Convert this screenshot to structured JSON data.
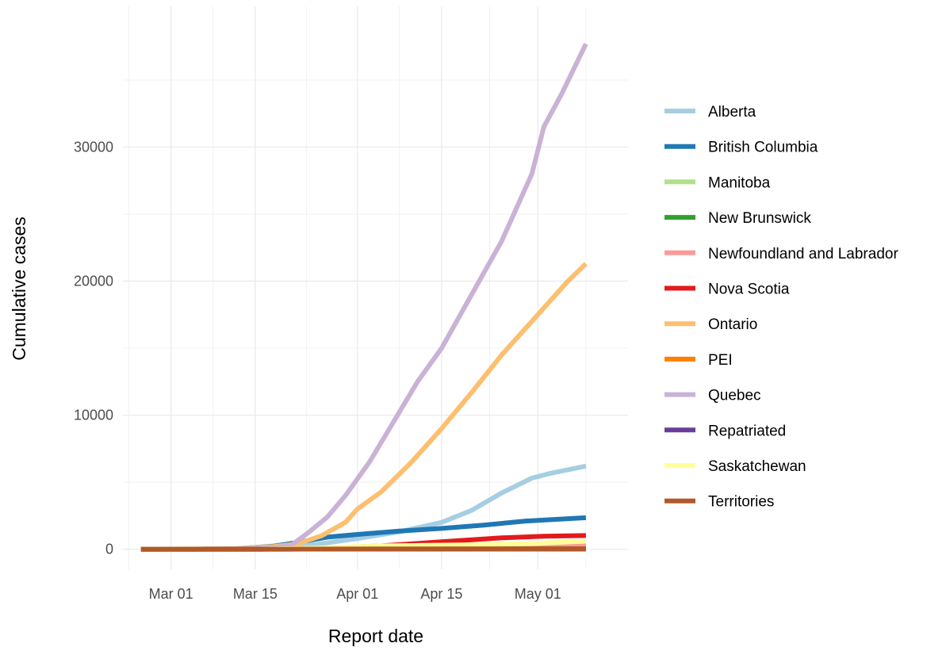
{
  "chart_data": {
    "type": "line",
    "title": "",
    "xlabel": "Report date",
    "ylabel": "Cumulative cases",
    "x_ticks": [
      "Mar 01",
      "Mar 15",
      "Apr 01",
      "Apr 15",
      "May 01"
    ],
    "x_tick_dates": [
      "2020-03-01",
      "2020-03-15",
      "2020-04-01",
      "2020-04-15",
      "2020-05-01"
    ],
    "y_ticks": [
      "0",
      "10000",
      "20000",
      "30000"
    ],
    "xlim": [
      "2020-02-22",
      "2020-05-16"
    ],
    "ylim": [
      -1500,
      40500
    ],
    "grid": true,
    "legend_position": "right",
    "series": [
      {
        "name": "Alberta",
        "color": "#a6cee3",
        "points": [
          [
            "2020-02-25",
            0
          ],
          [
            "2020-03-05",
            0
          ],
          [
            "2020-03-12",
            20
          ],
          [
            "2020-03-20",
            150
          ],
          [
            "2020-03-25",
            350
          ],
          [
            "2020-04-01",
            800
          ],
          [
            "2020-04-08",
            1300
          ],
          [
            "2020-04-15",
            2000
          ],
          [
            "2020-04-20",
            2900
          ],
          [
            "2020-04-25",
            4200
          ],
          [
            "2020-04-30",
            5300
          ],
          [
            "2020-05-03",
            5650
          ],
          [
            "2020-05-09",
            6200
          ]
        ]
      },
      {
        "name": "British Columbia",
        "color": "#1f78b4",
        "points": [
          [
            "2020-02-25",
            0
          ],
          [
            "2020-03-05",
            10
          ],
          [
            "2020-03-12",
            40
          ],
          [
            "2020-03-18",
            230
          ],
          [
            "2020-03-22",
            500
          ],
          [
            "2020-03-27",
            900
          ],
          [
            "2020-04-01",
            1100
          ],
          [
            "2020-04-08",
            1350
          ],
          [
            "2020-04-15",
            1550
          ],
          [
            "2020-04-22",
            1800
          ],
          [
            "2020-04-29",
            2100
          ],
          [
            "2020-05-09",
            2350
          ]
        ]
      },
      {
        "name": "Manitoba",
        "color": "#b2df8a",
        "points": [
          [
            "2020-02-25",
            0
          ],
          [
            "2020-03-15",
            5
          ],
          [
            "2020-03-25",
            40
          ],
          [
            "2020-04-05",
            200
          ],
          [
            "2020-04-20",
            260
          ],
          [
            "2020-05-09",
            290
          ]
        ]
      },
      {
        "name": "New Brunswick",
        "color": "#33a02c",
        "points": [
          [
            "2020-02-25",
            0
          ],
          [
            "2020-03-15",
            5
          ],
          [
            "2020-03-25",
            30
          ],
          [
            "2020-04-05",
            100
          ],
          [
            "2020-04-20",
            118
          ],
          [
            "2020-05-09",
            120
          ]
        ]
      },
      {
        "name": "Newfoundland and Labrador",
        "color": "#fb9a99",
        "points": [
          [
            "2020-02-25",
            0
          ],
          [
            "2020-03-15",
            2
          ],
          [
            "2020-03-25",
            60
          ],
          [
            "2020-04-05",
            200
          ],
          [
            "2020-04-20",
            255
          ],
          [
            "2020-05-09",
            260
          ]
        ]
      },
      {
        "name": "Nova Scotia",
        "color": "#e31a1c",
        "points": [
          [
            "2020-02-25",
            0
          ],
          [
            "2020-03-15",
            2
          ],
          [
            "2020-03-25",
            50
          ],
          [
            "2020-04-05",
            250
          ],
          [
            "2020-04-15",
            550
          ],
          [
            "2020-04-25",
            850
          ],
          [
            "2020-05-02",
            970
          ],
          [
            "2020-05-09",
            1020
          ]
        ]
      },
      {
        "name": "Ontario",
        "color": "#fdbf6f",
        "points": [
          [
            "2020-02-25",
            0
          ],
          [
            "2020-03-05",
            20
          ],
          [
            "2020-03-12",
            50
          ],
          [
            "2020-03-18",
            200
          ],
          [
            "2020-03-22",
            400
          ],
          [
            "2020-03-26",
            1000
          ],
          [
            "2020-03-30",
            2000
          ],
          [
            "2020-04-01",
            3000
          ],
          [
            "2020-04-05",
            4300
          ],
          [
            "2020-04-10",
            6500
          ],
          [
            "2020-04-15",
            9000
          ],
          [
            "2020-04-20",
            11700
          ],
          [
            "2020-04-25",
            14500
          ],
          [
            "2020-04-30",
            17000
          ],
          [
            "2020-05-03",
            18500
          ],
          [
            "2020-05-06",
            20000
          ],
          [
            "2020-05-09",
            21300
          ]
        ]
      },
      {
        "name": "PEI",
        "color": "#ff7f00",
        "points": [
          [
            "2020-02-25",
            0
          ],
          [
            "2020-03-15",
            1
          ],
          [
            "2020-04-01",
            21
          ],
          [
            "2020-05-09",
            27
          ]
        ]
      },
      {
        "name": "Quebec",
        "color": "#cab2d6",
        "points": [
          [
            "2020-02-25",
            0
          ],
          [
            "2020-03-05",
            0
          ],
          [
            "2020-03-12",
            20
          ],
          [
            "2020-03-18",
            120
          ],
          [
            "2020-03-21",
            300
          ],
          [
            "2020-03-24",
            1300
          ],
          [
            "2020-03-27",
            2400
          ],
          [
            "2020-03-30",
            4000
          ],
          [
            "2020-04-03",
            6500
          ],
          [
            "2020-04-07",
            9500
          ],
          [
            "2020-04-11",
            12500
          ],
          [
            "2020-04-15",
            15000
          ],
          [
            "2020-04-20",
            19000
          ],
          [
            "2020-04-25",
            23000
          ],
          [
            "2020-04-30",
            28000
          ],
          [
            "2020-05-02",
            31500
          ],
          [
            "2020-05-05",
            34000
          ],
          [
            "2020-05-09",
            37700
          ]
        ]
      },
      {
        "name": "Repatriated",
        "color": "#6a3d9a",
        "points": [
          [
            "2020-02-25",
            0
          ],
          [
            "2020-03-05",
            5
          ],
          [
            "2020-03-10",
            13
          ],
          [
            "2020-05-09",
            13
          ]
        ]
      },
      {
        "name": "Saskatchewan",
        "color": "#ffff99",
        "points": [
          [
            "2020-02-25",
            0
          ],
          [
            "2020-03-15",
            5
          ],
          [
            "2020-03-25",
            80
          ],
          [
            "2020-04-05",
            250
          ],
          [
            "2020-04-20",
            330
          ],
          [
            "2020-04-30",
            420
          ],
          [
            "2020-05-09",
            600
          ]
        ]
      },
      {
        "name": "Territories",
        "color": "#b15928",
        "points": [
          [
            "2020-02-25",
            0
          ],
          [
            "2020-03-20",
            2
          ],
          [
            "2020-04-05",
            20
          ],
          [
            "2020-05-09",
            35
          ]
        ]
      }
    ]
  }
}
